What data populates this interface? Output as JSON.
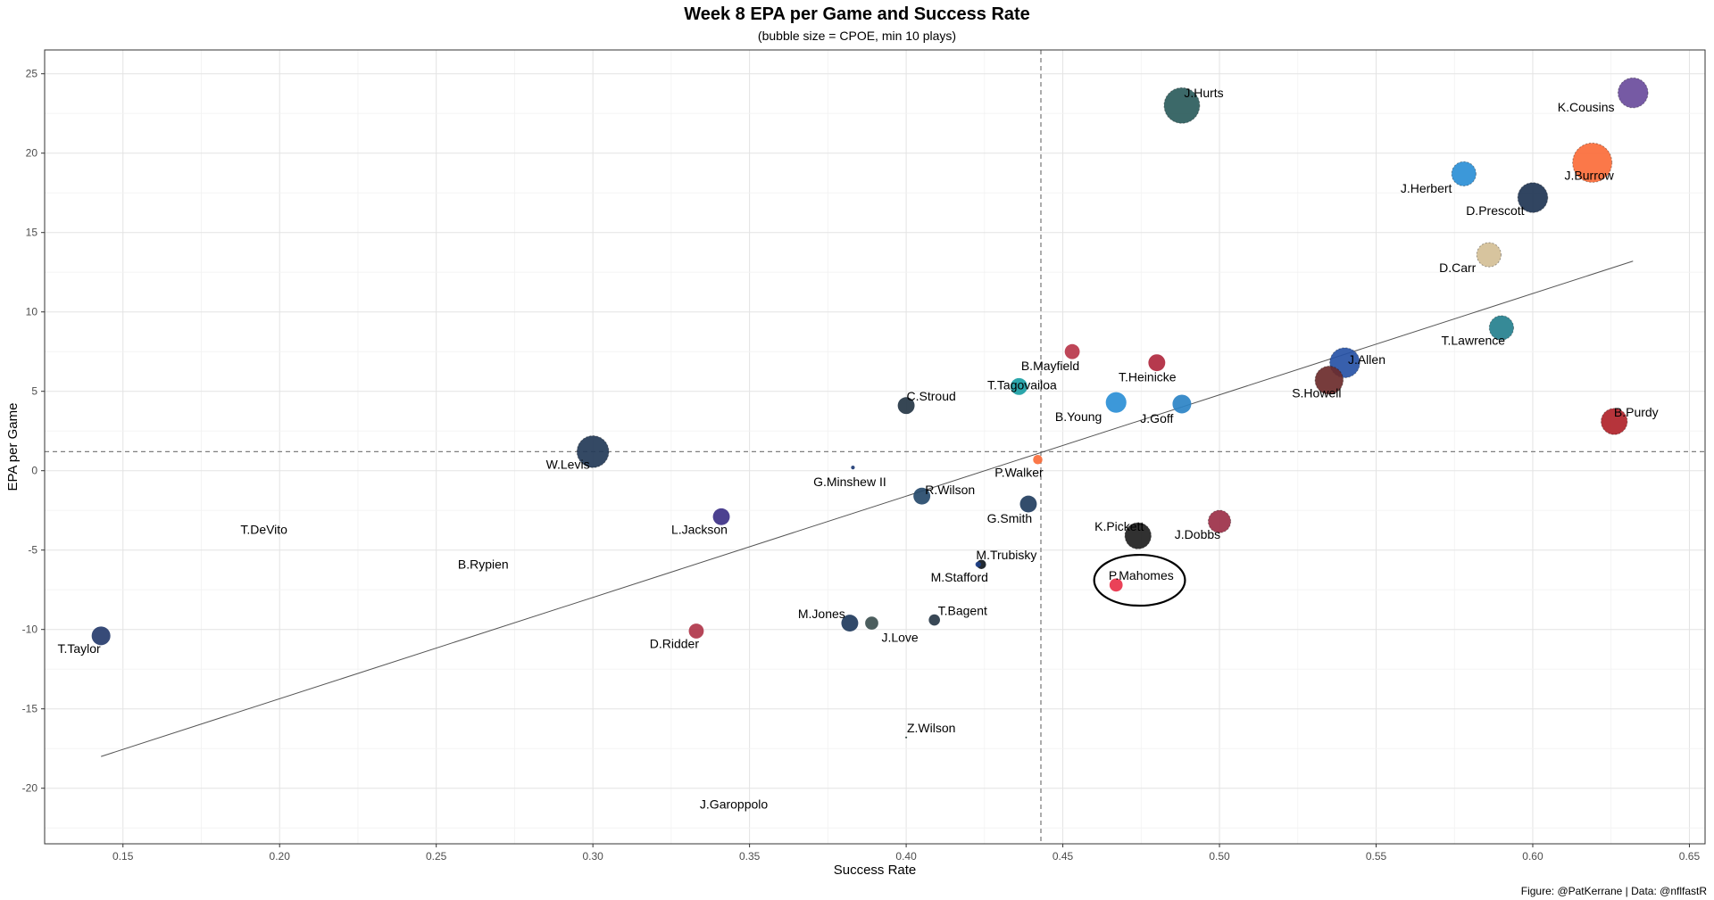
{
  "chart_data": {
    "type": "scatter",
    "title": "Week 8 EPA per Game and Success Rate",
    "subtitle": "(bubble size = CPOE, min 10 plays)",
    "caption": "Figure: @PatKerrane | Data: @nflfastR",
    "xlabel": "Success Rate",
    "ylabel": "EPA per Game",
    "xlim": [
      0.125,
      0.655
    ],
    "ylim": [
      -23.5,
      26.5
    ],
    "x_ticks": [
      0.15,
      0.2,
      0.25,
      0.3,
      0.35,
      0.4,
      0.45,
      0.5,
      0.55,
      0.6,
      0.65
    ],
    "x_tick_labels": [
      "0.15",
      "0.20",
      "0.25",
      "0.30",
      "0.35",
      "0.40",
      "0.45",
      "0.50",
      "0.55",
      "0.60",
      "0.65"
    ],
    "y_ticks": [
      -20,
      -15,
      -10,
      -5,
      0,
      5,
      10,
      15,
      20,
      25
    ],
    "y_tick_labels": [
      "-20",
      "-15",
      "-10",
      "-5",
      "0",
      "5",
      "10",
      "15",
      "20",
      "25"
    ],
    "grid": true,
    "legend": "none",
    "ref_lines": {
      "x": 0.443,
      "y": 1.2
    },
    "trend_line": {
      "x": [
        0.143,
        0.632
      ],
      "y": [
        -18.0,
        13.2
      ]
    },
    "points": [
      {
        "name": "J.Hurts",
        "x": 0.488,
        "y": 23.0,
        "size": 9.5,
        "color": "#2b5c5c",
        "lx": 0.495,
        "ly": 23.8
      },
      {
        "name": "K.Cousins",
        "x": 0.632,
        "y": 23.8,
        "size": 8.0,
        "color": "#6a4c9c",
        "lx": 0.617,
        "ly": 22.9
      },
      {
        "name": "J.Burrow",
        "x": 0.619,
        "y": 19.4,
        "size": 10.5,
        "color": "#fb6d3a",
        "lx": 0.618,
        "ly": 18.6
      },
      {
        "name": "J.Herbert",
        "x": 0.578,
        "y": 18.7,
        "size": 6.5,
        "color": "#2b8fd6",
        "lx": 0.566,
        "ly": 17.8
      },
      {
        "name": "D.Prescott",
        "x": 0.6,
        "y": 17.2,
        "size": 8.0,
        "color": "#1f3554",
        "lx": 0.588,
        "ly": 16.4
      },
      {
        "name": "D.Carr",
        "x": 0.586,
        "y": 13.6,
        "size": 6.5,
        "color": "#d4bf96",
        "lx": 0.576,
        "ly": 12.8
      },
      {
        "name": "T.Lawrence",
        "x": 0.59,
        "y": 9.0,
        "size": 6.5,
        "color": "#25808e",
        "lx": 0.581,
        "ly": 8.2
      },
      {
        "name": "J.Allen",
        "x": 0.54,
        "y": 6.8,
        "size": 8.0,
        "color": "#2753a6",
        "lx": 0.547,
        "ly": 7.0
      },
      {
        "name": "S.Howell",
        "x": 0.535,
        "y": 5.7,
        "size": 7.5,
        "color": "#6b2b2b",
        "lx": 0.531,
        "ly": 4.9
      },
      {
        "name": "B.Purdy",
        "x": 0.626,
        "y": 3.1,
        "size": 7.0,
        "color": "#b0232a",
        "lx": 0.633,
        "ly": 3.7
      },
      {
        "name": "B.Mayfield",
        "x": 0.453,
        "y": 7.5,
        "size": 4.0,
        "color": "#b8364a",
        "lx": 0.446,
        "ly": 6.6
      },
      {
        "name": "T.Heinicke",
        "x": 0.48,
        "y": 6.8,
        "size": 4.5,
        "color": "#b0283e",
        "lx": 0.477,
        "ly": 5.9
      },
      {
        "name": "T.Tagovailoa",
        "x": 0.436,
        "y": 5.3,
        "size": 4.5,
        "color": "#1a9ea4",
        "lx": 0.437,
        "ly": 5.4
      },
      {
        "name": "C.Stroud",
        "x": 0.4,
        "y": 4.1,
        "size": 4.5,
        "color": "#253645",
        "lx": 0.408,
        "ly": 4.7
      },
      {
        "name": "B.Young",
        "x": 0.467,
        "y": 4.3,
        "size": 5.5,
        "color": "#2b8fd6",
        "lx": 0.455,
        "ly": 3.4
      },
      {
        "name": "J.Goff",
        "x": 0.488,
        "y": 4.2,
        "size": 5.0,
        "color": "#2b83c6",
        "lx": 0.48,
        "ly": 3.3
      },
      {
        "name": "W.Levis",
        "x": 0.3,
        "y": 1.2,
        "size": 8.5,
        "color": "#233a57",
        "lx": 0.292,
        "ly": 0.4
      },
      {
        "name": "G.Minshew II",
        "x": 0.383,
        "y": 0.2,
        "size": 1.0,
        "color": "#203c75",
        "lx": 0.382,
        "ly": -0.7
      },
      {
        "name": "P.Walker",
        "x": 0.442,
        "y": 0.7,
        "size": 2.5,
        "color": "#fb6d3a",
        "lx": 0.436,
        "ly": -0.1
      },
      {
        "name": "R.Wilson",
        "x": 0.405,
        "y": -1.6,
        "size": 4.5,
        "color": "#264a6b",
        "lx": 0.414,
        "ly": -1.2
      },
      {
        "name": "G.Smith",
        "x": 0.439,
        "y": -2.1,
        "size": 4.5,
        "color": "#223e60",
        "lx": 0.433,
        "ly": -3.0
      },
      {
        "name": "L.Jackson",
        "x": 0.341,
        "y": -2.9,
        "size": 4.5,
        "color": "#3d3187",
        "lx": 0.334,
        "ly": -3.7
      },
      {
        "name": "T.DeVito",
        "x": 0.2,
        "y": -3.7,
        "size": 0,
        "color": "#0b2265",
        "lx": 0.195,
        "ly": -3.7
      },
      {
        "name": "K.Pickett",
        "x": 0.474,
        "y": -4.1,
        "size": 7.0,
        "color": "#202020",
        "lx": 0.468,
        "ly": -3.5
      },
      {
        "name": "J.Dobbs",
        "x": 0.5,
        "y": -3.2,
        "size": 6.0,
        "color": "#9c3048",
        "lx": 0.493,
        "ly": -4.0
      },
      {
        "name": "B.Rypien",
        "x": 0.265,
        "y": -5.9,
        "size": 0,
        "color": "#1a3a5a",
        "lx": 0.265,
        "ly": -5.9
      },
      {
        "name": "M.Trubisky",
        "x": 0.424,
        "y": -5.9,
        "size": 2.5,
        "color": "#101820",
        "lx": 0.432,
        "ly": -5.3
      },
      {
        "name": "M.Stafford",
        "x": 0.423,
        "y": -5.9,
        "size": 1.5,
        "color": "#1d3f87",
        "lx": 0.417,
        "ly": -6.7
      },
      {
        "name": "P.Mahomes",
        "x": 0.467,
        "y": -7.2,
        "size": 3.5,
        "color": "#e8324a",
        "lx": 0.475,
        "ly": -6.6
      },
      {
        "name": "M.Jones",
        "x": 0.382,
        "y": -9.6,
        "size": 4.5,
        "color": "#1f3a5c",
        "lx": 0.373,
        "ly": -9.0
      },
      {
        "name": "J.Love",
        "x": 0.389,
        "y": -9.6,
        "size": 3.5,
        "color": "#3d5050",
        "lx": 0.398,
        "ly": -10.5
      },
      {
        "name": "T.Bagent",
        "x": 0.409,
        "y": -9.4,
        "size": 3.0,
        "color": "#283848",
        "lx": 0.418,
        "ly": -8.8
      },
      {
        "name": "D.Ridder",
        "x": 0.333,
        "y": -10.1,
        "size": 4.0,
        "color": "#b0364a",
        "lx": 0.326,
        "ly": -10.9
      },
      {
        "name": "T.Taylor",
        "x": 0.143,
        "y": -10.4,
        "size": 5.0,
        "color": "#263c6c",
        "lx": 0.136,
        "ly": -11.2
      },
      {
        "name": "Z.Wilson",
        "x": 0.4,
        "y": -16.8,
        "size": 0.5,
        "color": "#203731",
        "lx": 0.408,
        "ly": -16.2
      },
      {
        "name": "J.Garoppolo",
        "x": 0.335,
        "y": -21.0,
        "size": 0,
        "color": "#444444",
        "lx": 0.345,
        "ly": -21.0
      }
    ],
    "highlight": {
      "name": "P.Mahomes",
      "shape": "ellipse",
      "x": 0.4745,
      "y": -6.9,
      "rx": 0.0145,
      "ry": 1.6
    }
  }
}
